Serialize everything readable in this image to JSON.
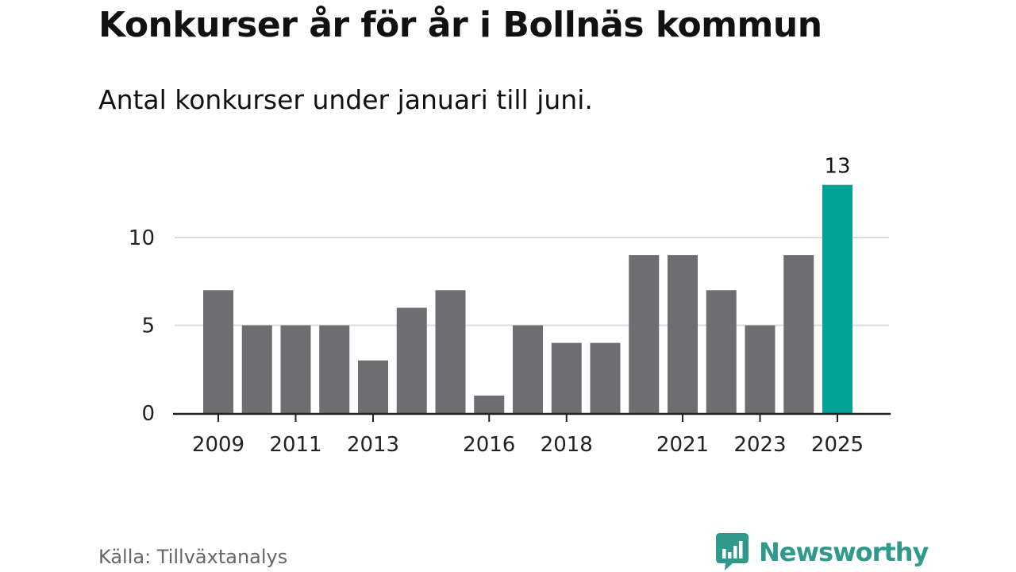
{
  "title": "Konkurser år för år i Bollnäs kommun",
  "subtitle": "Antal konkurser under januari till juni.",
  "source": "Källa: Tillväxtanalys",
  "brand": {
    "name": "Newsworthy",
    "icon": "newsworthy-chart-bubble-icon"
  },
  "colors": {
    "bar": "#6e6d72",
    "highlight": "#00a396",
    "grid": "#dcdcdc",
    "axis": "#222222",
    "brand": "#2f9a8c"
  },
  "chart_data": {
    "type": "bar",
    "categories": [
      "2009",
      "2010",
      "2011",
      "2012",
      "2013",
      "2014",
      "2015",
      "2016",
      "2017",
      "2018",
      "2019",
      "2020",
      "2021",
      "2022",
      "2023",
      "2024",
      "2025"
    ],
    "values": [
      7,
      5,
      5,
      5,
      3,
      6,
      7,
      1,
      5,
      4,
      4,
      9,
      9,
      7,
      5,
      9,
      13
    ],
    "x_tick_labels": [
      "2009",
      "2011",
      "2013",
      "2016",
      "2018",
      "2021",
      "2023",
      "2025"
    ],
    "y_ticks": [
      0,
      5,
      10
    ],
    "ylim": [
      0,
      13
    ],
    "highlight_category": "2025",
    "data_labels": [
      {
        "category": "2025",
        "text": "13"
      }
    ],
    "grid": true,
    "legend": false
  }
}
